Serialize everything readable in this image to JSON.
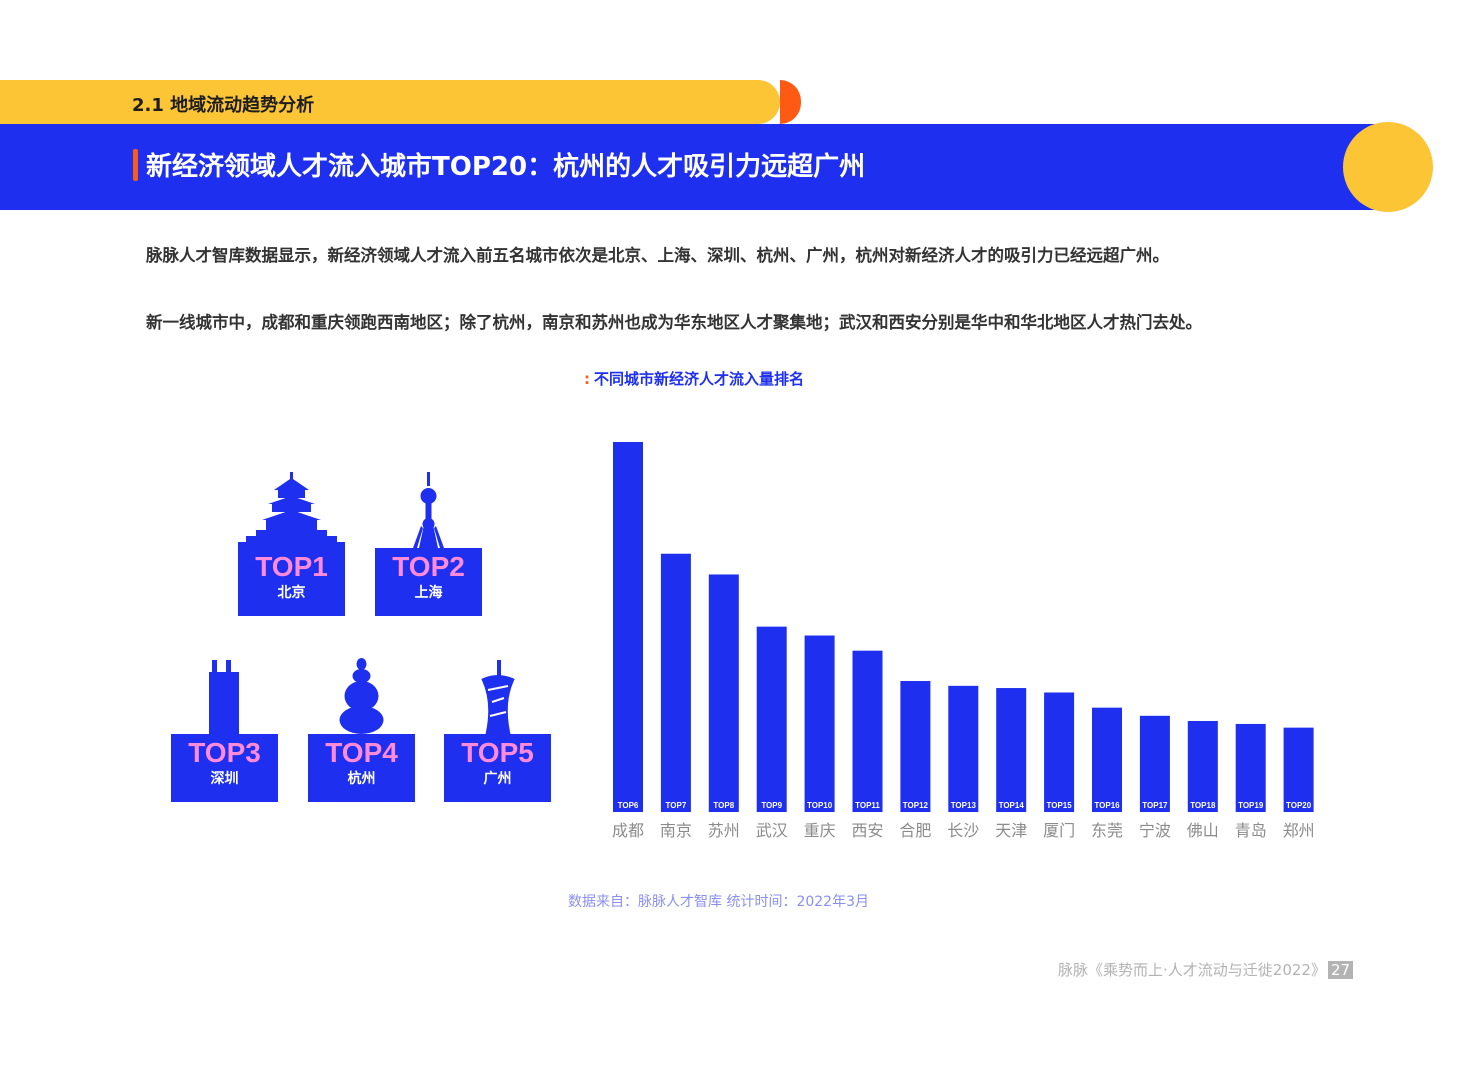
{
  "header": {
    "section": "2.1 地域流动趋势分析",
    "title": "新经济领域人才流入城市TOP20：杭州的人才吸引力远超广州"
  },
  "paragraphs": [
    "脉脉人才智库数据显示，新经济领域人才流入前五名城市依次是北京、上海、深圳、杭州、广州，杭州对新经济人才的吸引力已经远超广州。",
    "新一线城市中，成都和重庆领跑西南地区；除了杭州，南京和苏州也成为华东地区人才聚集地；武汉和西安分别是华中和华北地区人才热门去处。"
  ],
  "chart_title": "不同城市新经济人才流入量排名",
  "colors": {
    "blue": "#1e2ff0",
    "yellow": "#fcc536",
    "orange": "#ff5a14",
    "pink": "#ff8ad8"
  },
  "top5": [
    {
      "rank": "TOP1",
      "city": "北京",
      "icon": "temple-of-heaven-icon"
    },
    {
      "rank": "TOP2",
      "city": "上海",
      "icon": "oriental-pearl-tower-icon"
    },
    {
      "rank": "TOP3",
      "city": "深圳",
      "icon": "skyscraper-icon"
    },
    {
      "rank": "TOP4",
      "city": "杭州",
      "icon": "pagoda-icon"
    },
    {
      "rank": "TOP5",
      "city": "广州",
      "icon": "canton-tower-icon"
    }
  ],
  "chart_data": {
    "type": "bar",
    "categories": [
      "成都",
      "南京",
      "苏州",
      "武汉",
      "重庆",
      "西安",
      "合肥",
      "长沙",
      "天津",
      "厦门",
      "东莞",
      "宁波",
      "佛山",
      "青岛",
      "郑州"
    ],
    "bar_labels": [
      "TOP6",
      "TOP7",
      "TOP8",
      "TOP9",
      "TOP10",
      "TOP11",
      "TOP12",
      "TOP13",
      "TOP14",
      "TOP15",
      "TOP16",
      "TOP17",
      "TOP18",
      "TOP19",
      "TOP20"
    ],
    "values": [
      100,
      69.8,
      64.2,
      50.1,
      47.7,
      43.6,
      35.4,
      34.1,
      33.5,
      32.3,
      28.2,
      26.0,
      24.6,
      23.8,
      22.8
    ],
    "ylim": [
      0,
      100
    ],
    "grid": false,
    "color": "#1e2ff0"
  },
  "source": "数据来自：脉脉人才智库    统计时间：2022年3月",
  "footer": {
    "text": "脉脉《乘势而上·人才流动与迁徙2022》",
    "page": "27"
  }
}
